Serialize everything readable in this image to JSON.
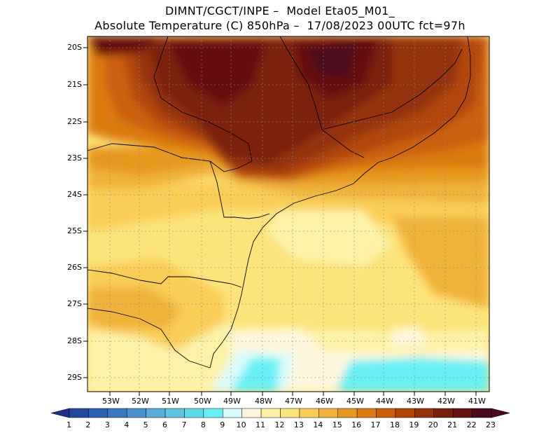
{
  "title": {
    "line1": "DIMNT/CGCT/INPE –  Model Eta05_M01_",
    "line2": "Absolute Temperature (C) 850hPa –  17/08/2023 00UTC fct=97h"
  },
  "lat_ticks": [
    "20S",
    "21S",
    "22S",
    "23S",
    "24S",
    "25S",
    "26S",
    "27S",
    "28S",
    "29S"
  ],
  "lon_ticks": [
    "53W",
    "52W",
    "51W",
    "50W",
    "49W",
    "48W",
    "47W",
    "46W",
    "45W",
    "44W",
    "43W",
    "42W",
    "41W"
  ],
  "colorbar": {
    "labels": [
      "1",
      "2",
      "3",
      "4",
      "5",
      "6",
      "7",
      "8",
      "9",
      "10",
      "11",
      "12",
      "13",
      "14",
      "15",
      "16",
      "17",
      "18",
      "19",
      "20",
      "21",
      "22",
      "23"
    ],
    "colors": [
      "#1f2f8a",
      "#23489f",
      "#2b63b2",
      "#3879c0",
      "#4a92cc",
      "#5aacd8",
      "#5fc4e0",
      "#5bdce8",
      "#66f0f6",
      "#d8fbfa",
      "#fef6dc",
      "#fdf1a8",
      "#fce47a",
      "#f8ce55",
      "#f0b43a",
      "#e6981e",
      "#dd7b10",
      "#cc5e09",
      "#b34607",
      "#943208",
      "#7b2008",
      "#651110",
      "#4a0a1c"
    ]
  }
}
